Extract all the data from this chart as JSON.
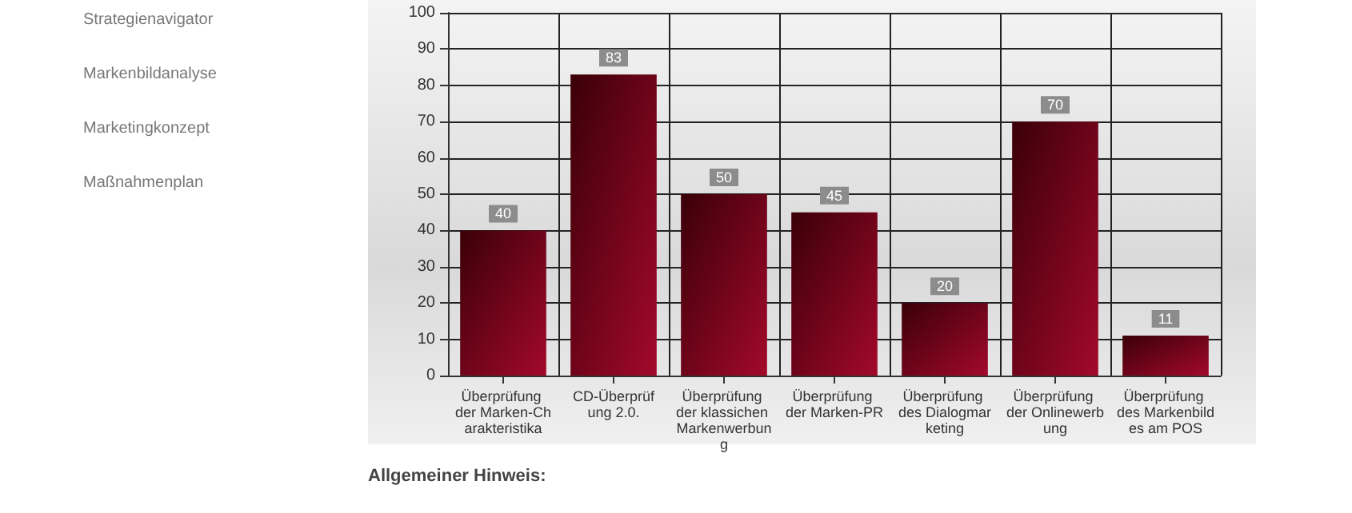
{
  "chart_data": {
    "type": "bar",
    "categories": [
      "Überprüfung der Marken-Charakteristika",
      "CD-Überprüfung 2.0.",
      "Überprüfung der klassichen Markenwerbung",
      "Überprüfung der Marken-PR",
      "Überprüfung des Dialogmarketing",
      "Überprüfung der Onlinewerbung",
      "Überprüfung des Markenbildes am POS"
    ],
    "values": [
      40,
      83,
      50,
      45,
      20,
      70,
      11
    ],
    "color": "#a3092b",
    "ylim": [
      0,
      100
    ],
    "yticks": [
      0,
      10,
      20,
      30,
      40,
      50,
      60,
      70,
      80,
      90,
      100
    ],
    "grid": true,
    "data_labels": true,
    "annotations": [
      "Strategienavigator",
      "Markenbildanalyse",
      "Marketingkonzept",
      "Maßnahmenplan",
      "Allgemeiner Hinweis:"
    ]
  }
}
